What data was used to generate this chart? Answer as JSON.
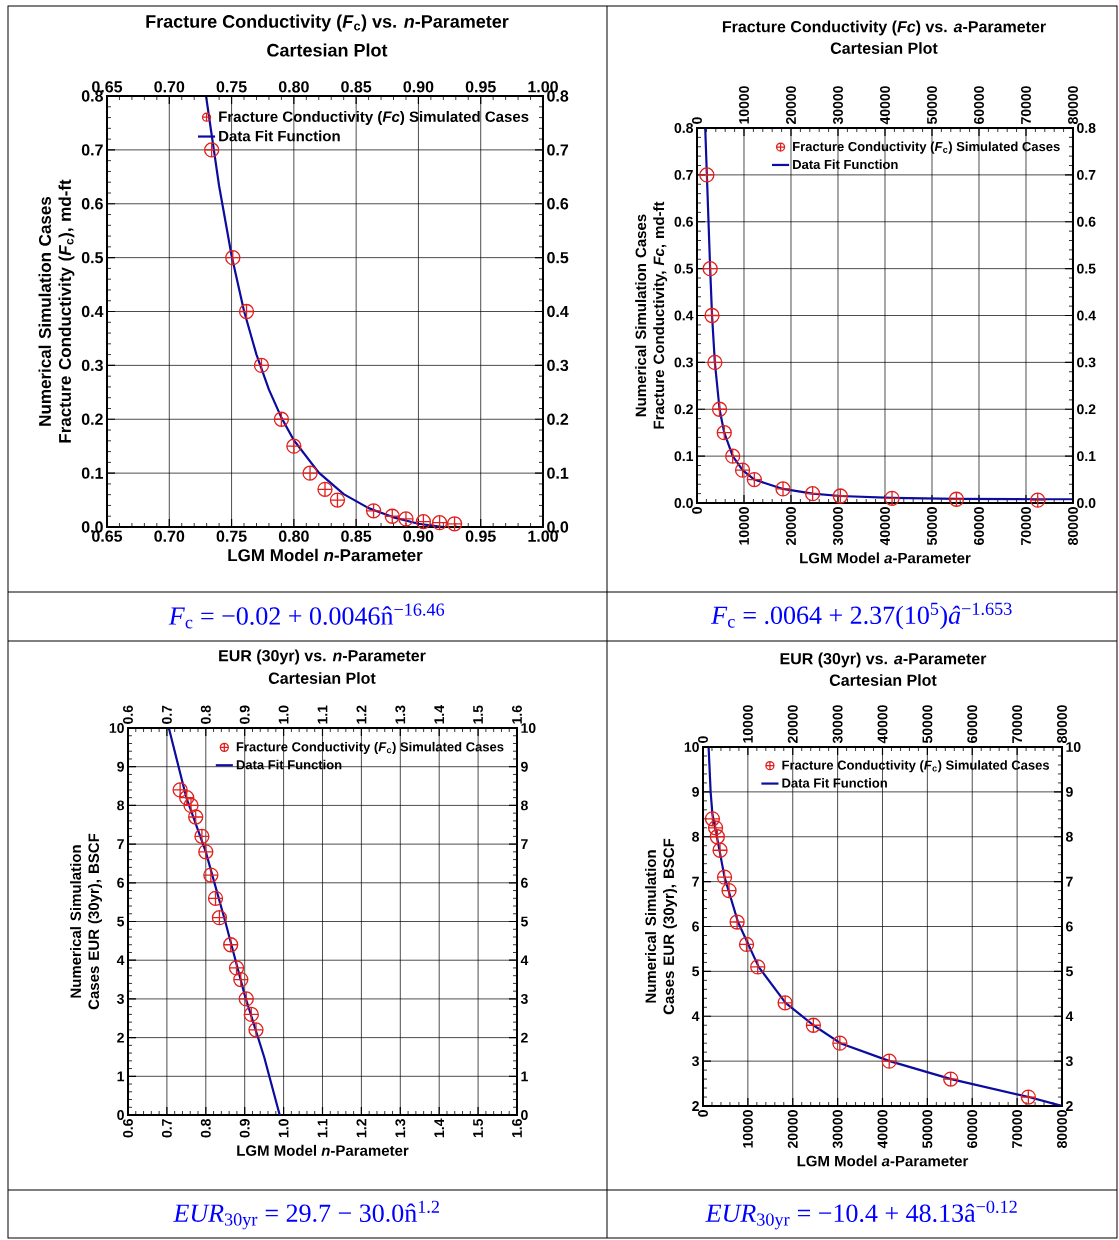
{
  "chart_data": [
    {
      "type": "scatter",
      "title": "Fracture Conductivity (*F*$_{c}$) vs. *n*-Parameter",
      "subtitle": "Cartesian Plot",
      "xlabel": "LGM Model *n*-Parameter",
      "ylabel": "Numerical Simulation Cases Fracture Conductivity (*F*$_{c}$), md-ft",
      "annotations": [
        "*F*$_{c}$ = −0.02 + 0.0046n̂$^{−16.46}$"
      ],
      "xlim": [
        0.65,
        1.0
      ],
      "xticks": [
        0.65,
        {
          "value": 0.7,
          "label": "0.70"
        },
        0.75,
        {
          "value": 0.8,
          "label": "0.80"
        },
        0.85,
        {
          "value": 0.9,
          "label": "0.90"
        },
        0.95,
        {
          "value": 1.0,
          "label": "1.00"
        }
      ],
      "x2lim": [
        0.65,
        1.0
      ],
      "x2ticks": [
        0.65,
        {
          "value": 0.7,
          "label": "0.70"
        },
        0.75,
        {
          "value": 0.8,
          "label": "0.80"
        },
        0.85,
        {
          "value": 0.9,
          "label": "0.90"
        },
        0.95,
        {
          "value": 1.0,
          "label": "1.00"
        }
      ],
      "ylim": [
        0,
        0.8
      ],
      "yticks": [
        {
          "value": 0,
          "label": "0.0"
        },
        0.1,
        0.2,
        0.3,
        0.4,
        0.5,
        0.6,
        0.7,
        0.8
      ],
      "y2lim": [
        0,
        0.8
      ],
      "y2ticks": [
        {
          "value": 0,
          "label": "0.0"
        },
        0.1,
        0.2,
        0.3,
        0.4,
        0.5,
        0.6,
        0.7,
        0.8
      ],
      "grid": true,
      "legend": "top right",
      "series": [
        {
          "name": "Fracture Conductivity (*Fc*) Simulated Cases",
          "type": "scatter",
          "marker": "cross",
          "color": "#e0201e",
          "x": [
            0.734,
            0.751,
            0.762,
            0.774,
            0.79,
            0.8,
            0.813,
            0.825,
            0.835,
            0.864,
            0.879,
            0.89,
            0.904,
            0.917,
            0.929
          ],
          "values": [
            0.7,
            0.5,
            0.4,
            0.3,
            0.2,
            0.15,
            0.1,
            0.07,
            0.05,
            0.03,
            0.02,
            0.015,
            0.01,
            0.008,
            0.006
          ]
        },
        {
          "name": "Data Fit Function",
          "type": "line",
          "marker": "none",
          "line_style": "solid",
          "color": "#0c0c9e",
          "x": [
            0.7295,
            0.74,
            0.75,
            0.76,
            0.77,
            0.78,
            0.79,
            0.8,
            0.82,
            0.84,
            0.86,
            0.88,
            0.9,
            0.92
          ],
          "values": [
            0.8,
            0.633,
            0.504,
            0.401,
            0.32,
            0.255,
            0.203,
            0.161,
            0.101,
            0.061,
            0.035,
            0.018,
            0.006,
            0.0
          ]
        }
      ]
    },
    {
      "type": "scatter",
      "title": "Fracture Conductivity (*Fc*) vs. *a*-Parameter",
      "subtitle": "Cartesian Plot",
      "xlabel": "LGM Model *a*-Parameter",
      "ylabel": "Numerical Simulation Cases Fracture Conductivity, *Fc*, md-ft",
      "annotations": [
        "*F*$_{c}$ = .0064 + 2.37(10$^{5}$)*â*$^{−1.653}$"
      ],
      "xlim": [
        0,
        80000
      ],
      "xticks": [
        0,
        10000,
        20000,
        30000,
        40000,
        50000,
        60000,
        70000,
        80000
      ],
      "x2lim": [
        0,
        80000
      ],
      "x2ticks": [
        0,
        10000,
        20000,
        30000,
        40000,
        50000,
        60000,
        70000,
        80000
      ],
      "ylim": [
        0,
        0.8
      ],
      "yticks": [
        {
          "value": 0,
          "label": "0.0"
        },
        0.1,
        0.2,
        0.3,
        0.4,
        0.5,
        0.6,
        0.7,
        0.8
      ],
      "y2lim": [
        0,
        0.8
      ],
      "y2ticks": [
        {
          "value": 0,
          "label": "0.0"
        },
        0.1,
        0.2,
        0.3,
        0.4,
        0.5,
        0.6,
        0.7,
        0.8
      ],
      "grid": true,
      "legend": "top right",
      "series": [
        {
          "name": "Fracture Conductivity (*F*$_{c}$) Simulated Cases",
          "type": "scatter",
          "marker": "cross",
          "color": "#e0201e",
          "x": [
            2100,
            2800,
            3200,
            3800,
            4800,
            5800,
            7600,
            9700,
            12200,
            18300,
            24600,
            30500,
            41500,
            55200,
            72500
          ],
          "values": [
            0.7,
            0.5,
            0.4,
            0.3,
            0.2,
            0.15,
            0.1,
            0.07,
            0.05,
            0.03,
            0.02,
            0.015,
            0.01,
            0.008,
            0.006
          ]
        },
        {
          "name": "Data Fit Function",
          "type": "line",
          "marker": "none",
          "line_style": "solid",
          "color": "#0c0c9e",
          "x": [
            1750,
            2100,
            2800,
            3200,
            3800,
            4800,
            5800,
            7600,
            9700,
            12200,
            18300,
            24600,
            30500,
            41500,
            55200,
            72500,
            80000
          ],
          "values": [
            0.8,
            0.7,
            0.5,
            0.4,
            0.3,
            0.2,
            0.15,
            0.1,
            0.07,
            0.05,
            0.03,
            0.02,
            0.015,
            0.011,
            0.009,
            0.008,
            0.008
          ]
        }
      ]
    },
    {
      "type": "scatter",
      "title": "EUR (30yr) vs. *n*-Parameter",
      "subtitle": "Cartesian Plot",
      "xlabel": "LGM Model *n*-Parameter",
      "ylabel": "Numerical Simulation Cases EUR (30yr), BSCF",
      "annotations": [
        "*EUR*$_{30yr}$ = 29.7 − 30.0n̂$^{1.2}$"
      ],
      "xlim": [
        0.6,
        1.6
      ],
      "xticks": [
        0.6,
        0.7,
        0.8,
        0.9,
        {
          "value": 1.0,
          "label": "1.0"
        },
        1.1,
        1.2,
        1.3,
        1.4,
        1.5,
        1.6
      ],
      "x2lim": [
        0.6,
        1.6
      ],
      "x2ticks": [
        0.6,
        0.7,
        0.8,
        0.9,
        {
          "value": 1.0,
          "label": "1.0"
        },
        1.1,
        1.2,
        1.3,
        1.4,
        1.5,
        1.6
      ],
      "ylim": [
        0,
        10
      ],
      "yticks": [
        0,
        1,
        2,
        3,
        4,
        5,
        6,
        7,
        8,
        9,
        10
      ],
      "y2lim": [
        0,
        10
      ],
      "y2ticks": [
        0,
        1,
        2,
        3,
        4,
        5,
        6,
        7,
        8,
        9,
        10
      ],
      "grid": true,
      "legend": "top right",
      "series": [
        {
          "name": "Fracture Conductivity (*F*$_{c}$) Simulated Cases",
          "type": "scatter",
          "marker": "cross",
          "color": "#e0201e",
          "x": [
            0.734,
            0.751,
            0.762,
            0.774,
            0.79,
            0.8,
            0.813,
            0.825,
            0.835,
            0.864,
            0.879,
            0.89,
            0.904,
            0.917,
            0.929
          ],
          "values": [
            8.4,
            8.2,
            8.0,
            7.7,
            7.2,
            6.8,
            6.2,
            5.6,
            5.1,
            4.4,
            3.8,
            3.5,
            3.0,
            2.6,
            2.2
          ]
        },
        {
          "name": "Data Fit Function",
          "type": "line",
          "marker": "none",
          "line_style": "solid",
          "color": "#0c0c9e",
          "x": [
            0.705,
            0.75,
            0.8,
            0.85,
            0.9,
            0.95,
            0.99
          ],
          "values": [
            10,
            8.2,
            6.8,
            5.0,
            3.1,
            1.5,
            0
          ]
        }
      ]
    },
    {
      "type": "scatter",
      "title": "EUR (30yr) vs. *a*-Parameter",
      "subtitle": "Cartesian Plot",
      "xlabel": "LGM Model *a*-Parameter",
      "ylabel": "Numerical Simulation Cases EUR (30yr), BSCF",
      "annotations": [
        "*EUR*$_{30yr}$ = −10.4 + 48.13â$^{−0.12}$"
      ],
      "xlim": [
        0,
        80000
      ],
      "xticks": [
        0,
        10000,
        20000,
        30000,
        40000,
        50000,
        60000,
        70000,
        80000
      ],
      "x2lim": [
        0,
        80000
      ],
      "x2ticks": [
        0,
        10000,
        20000,
        30000,
        40000,
        50000,
        60000,
        70000,
        80000
      ],
      "ylim": [
        2,
        10
      ],
      "yticks": [
        2,
        3,
        4,
        5,
        6,
        7,
        8,
        9,
        10
      ],
      "y2lim": [
        2,
        10
      ],
      "y2ticks": [
        2,
        3,
        4,
        5,
        6,
        7,
        8,
        9,
        10
      ],
      "grid": true,
      "legend": "top right",
      "series": [
        {
          "name": "Fracture Conductivity (*F*$_{c}$) Simulated Cases",
          "type": "scatter",
          "marker": "cross",
          "color": "#e0201e",
          "x": [
            2100,
            2800,
            3200,
            3800,
            4800,
            5800,
            7600,
            9700,
            12200,
            18300,
            24600,
            30500,
            41500,
            55200,
            72500
          ],
          "values": [
            8.4,
            8.2,
            8.0,
            7.7,
            7.1,
            6.8,
            6.1,
            5.6,
            5.1,
            4.3,
            3.8,
            3.4,
            3.0,
            2.6,
            2.2
          ]
        },
        {
          "name": "Data Fit Function",
          "type": "line",
          "marker": "none",
          "line_style": "solid",
          "color": "#0c0c9e",
          "x": [
            1250,
            1700,
            2100,
            3100,
            4800,
            7800,
            12400,
            18400,
            24600,
            30600,
            41600,
            55300,
            72600,
            80000
          ],
          "values": [
            10,
            9,
            8.5,
            8.0,
            7.1,
            6.1,
            5.1,
            4.3,
            3.8,
            3.4,
            3.0,
            2.6,
            2.2,
            2.0
          ]
        }
      ]
    }
  ]
}
